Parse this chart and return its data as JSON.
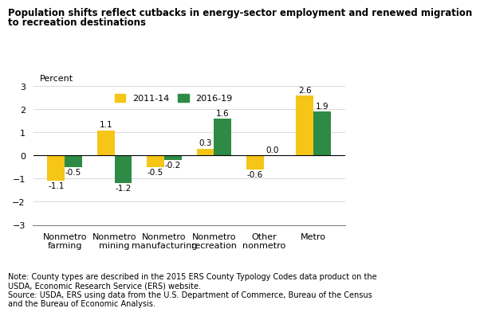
{
  "title_line1": "Population shifts reflect cutbacks in energy-sector employment and renewed migration",
  "title_line2": "to recreation destinations",
  "percent_label": "Percent",
  "categories": [
    "Nonmetro\nfarming",
    "Nonmetro\nmining",
    "Nonmetro\nmanufacturing",
    "Nonmetro\nrecreation",
    "Other\nnonmetro",
    "Metro"
  ],
  "series": {
    "2011-14": [
      -1.1,
      1.1,
      -0.5,
      0.3,
      -0.6,
      2.6
    ],
    "2016-19": [
      -0.5,
      -1.2,
      -0.2,
      1.6,
      0.0,
      1.9
    ]
  },
  "colors": {
    "2011-14": "#F5C518",
    "2016-19": "#2D8B45"
  },
  "ylim": [
    -3,
    3
  ],
  "yticks": [
    -3,
    -2,
    -1,
    0,
    1,
    2,
    3
  ],
  "note": "Note: County types are described in the 2015 ERS County Typology Codes data product on the\nUSDA, Economic Research Service (ERS) website.\nSource: USDA, ERS using data from the U.S. Department of Commerce, Bureau of the Census\nand the Bureau of Economic Analysis.",
  "bar_width": 0.35,
  "title_fontsize": 8.5,
  "tick_fontsize": 8,
  "label_fontsize": 7.5,
  "note_fontsize": 7,
  "legend_fontsize": 8,
  "percent_fontsize": 8
}
